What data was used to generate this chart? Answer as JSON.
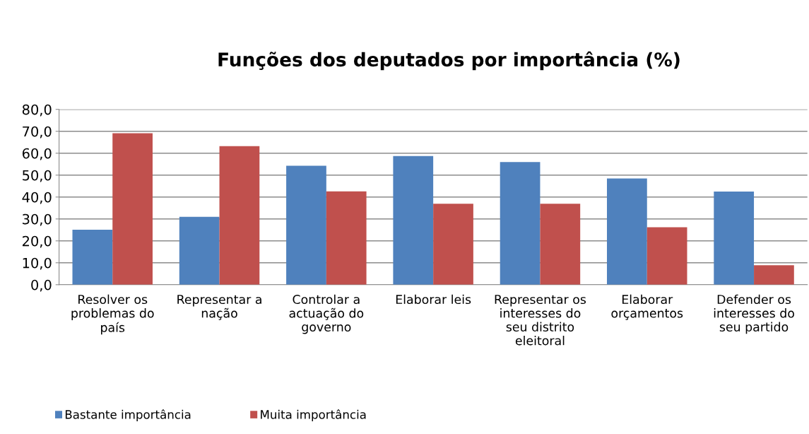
{
  "chart_data": {
    "type": "bar",
    "title": "Funções dos deputados por importância (%)",
    "categories": [
      "Resolver os\nproblemas do\npaís",
      "Representar a\nnação",
      "Controlar a\nactuação do\ngoverno",
      "Elaborar leis",
      "Representar os\ninteresses do\nseu distrito\neleitoral",
      "Elaborar\norçamentos",
      "Defender os\ninteresses do\nseu partido"
    ],
    "series": [
      {
        "name": "Bastante importância",
        "color": "#4f81bd",
        "values": [
          25.1,
          31.0,
          54.3,
          58.7,
          56.0,
          48.5,
          42.5
        ]
      },
      {
        "name": "Muita importância",
        "color": "#c0504d",
        "values": [
          69.1,
          63.2,
          42.6,
          36.9,
          36.9,
          26.2,
          8.9
        ]
      }
    ],
    "ylim": [
      0,
      80
    ],
    "yticks": [
      {
        "value": 0,
        "label": "0,0"
      },
      {
        "value": 10,
        "label": "10,0"
      },
      {
        "value": 20,
        "label": "20,0"
      },
      {
        "value": 30,
        "label": "30,0"
      },
      {
        "value": 40,
        "label": "40,0"
      },
      {
        "value": 50,
        "label": "50,0"
      },
      {
        "value": 60,
        "label": "60,0"
      },
      {
        "value": 70,
        "label": "70,0"
      },
      {
        "value": 80,
        "label": "80,0"
      }
    ],
    "grid": "y",
    "legend": "bottom left"
  }
}
